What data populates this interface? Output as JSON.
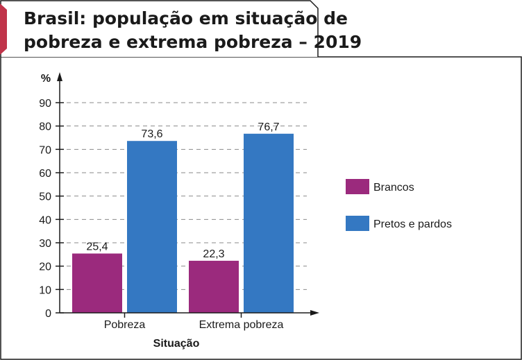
{
  "colors": {
    "brancos": "#9b2a7d",
    "pretos": "#3478c2",
    "accent": "#c0344a"
  },
  "chart_data": {
    "type": "bar",
    "title": "Brasil: população em situação de pobreza e extrema pobreza – 2019",
    "title_lines": [
      "Brasil: população em situação de",
      "pobreza e extrema pobreza – 2019"
    ],
    "xlabel": "Situação",
    "ylabel": "%",
    "ylim": [
      0,
      90
    ],
    "yticks": [
      0,
      10,
      20,
      30,
      40,
      50,
      60,
      70,
      80,
      90
    ],
    "grid": true,
    "legend_position": "right",
    "categories": [
      "Pobreza",
      "Extrema pobreza"
    ],
    "series": [
      {
        "name": "Brancos",
        "values": [
          25.4,
          22.3
        ],
        "labels": [
          "25,4",
          "22,3"
        ],
        "color": "#9b2a7d"
      },
      {
        "name": "Pretos e pardos",
        "values": [
          73.6,
          76.7
        ],
        "labels": [
          "73,6",
          "76,7"
        ],
        "color": "#3478c2"
      }
    ]
  }
}
